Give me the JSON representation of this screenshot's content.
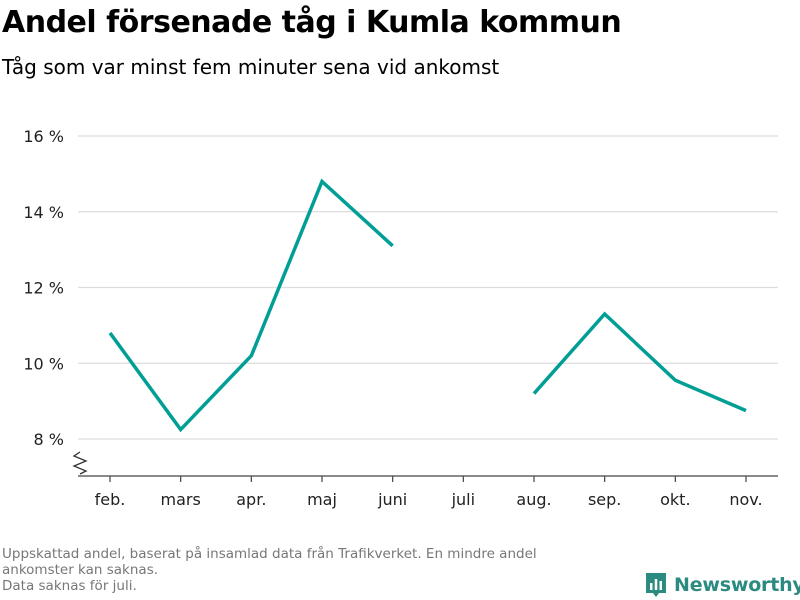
{
  "title": "Andel försenade tåg i Kumla kommun",
  "subtitle": "Tåg som var minst fem minuter sena vid ankomst",
  "footer": {
    "line1": "Uppskattad andel, baserat på insamlad data från Trafikverket. En mindre andel",
    "line2": "ankomster kan saknas.",
    "line3": "Data saknas för juli."
  },
  "brand": {
    "name": "Newsworthy",
    "icon": "newsworthy-logo-icon",
    "color": "#2b8b80"
  },
  "chart_data": {
    "type": "line",
    "categories": [
      "feb.",
      "mars",
      "apr.",
      "maj",
      "juni",
      "juli",
      "aug.",
      "sep.",
      "okt.",
      "nov."
    ],
    "series": [
      {
        "values": [
          10.8,
          8.25,
          10.2,
          14.8,
          13.1,
          null,
          9.2,
          11.3,
          9.55,
          8.75
        ]
      }
    ],
    "ylim": [
      7,
      16
    ],
    "yticks": [
      8,
      10,
      12,
      14,
      16
    ],
    "ytick_labels": [
      "8 %",
      "10 %",
      "12 %",
      "14 %",
      "16 %"
    ],
    "axis_break": true,
    "grid": true,
    "line_color": "#009e95",
    "grid_color": "#dddddd"
  }
}
